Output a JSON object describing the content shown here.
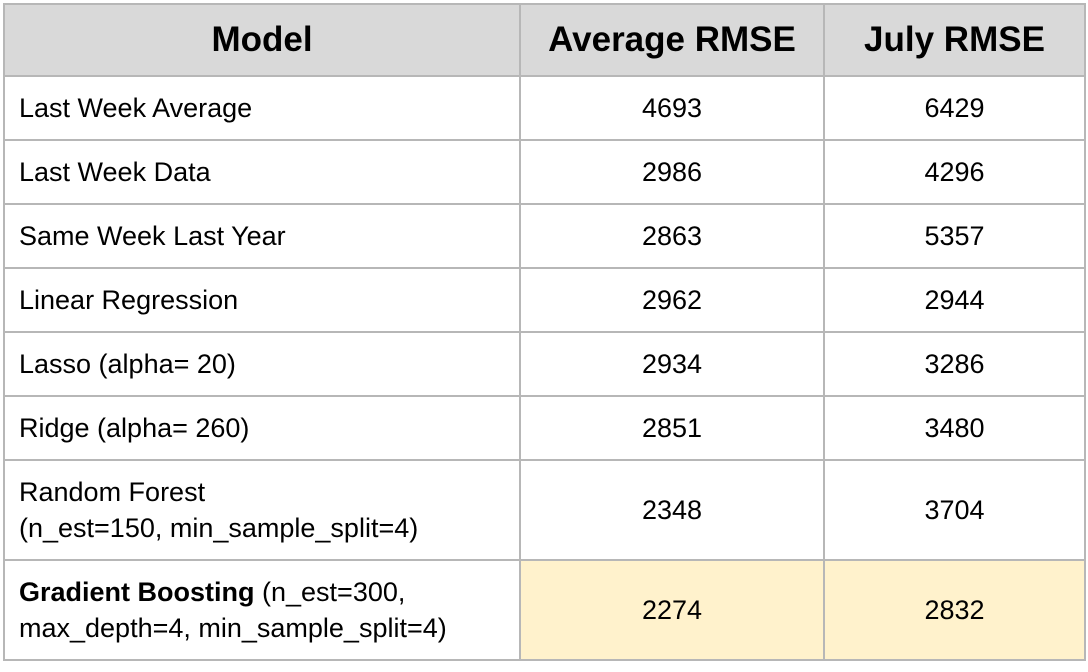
{
  "chart_data": {
    "type": "table",
    "columns": [
      "Model",
      "Average RMSE",
      "July RMSE"
    ],
    "rows": [
      {
        "model": "Last Week Average",
        "model_params": "",
        "average_rmse": "4693",
        "july_rmse": "6429",
        "highlight": false
      },
      {
        "model": "Last Week Data",
        "model_params": "",
        "average_rmse": "2986",
        "july_rmse": "4296",
        "highlight": false
      },
      {
        "model": "Same Week Last Year",
        "model_params": "",
        "average_rmse": "2863",
        "july_rmse": "5357",
        "highlight": false
      },
      {
        "model": "Linear Regression",
        "model_params": "",
        "average_rmse": "2962",
        "july_rmse": "2944",
        "highlight": false
      },
      {
        "model": "Lasso (alpha= 20)",
        "model_params": "",
        "average_rmse": "2934",
        "july_rmse": "3286",
        "highlight": false
      },
      {
        "model": "Ridge (alpha= 260)",
        "model_params": "",
        "average_rmse": "2851",
        "july_rmse": "3480",
        "highlight": false
      },
      {
        "model": "Random Forest",
        "model_params": "(n_est=150, min_sample_split=4)",
        "average_rmse": "2348",
        "july_rmse": "3704",
        "highlight": false
      },
      {
        "model": "Gradient Boosting",
        "model_params": "(n_est=300, max_depth=4, min_sample_split=4)",
        "average_rmse": "2274",
        "july_rmse": "2832",
        "highlight": true
      }
    ],
    "colors": {
      "header_bg": "#d9d9d9",
      "highlight_bg": "#fff2cc",
      "border": "#b7b7b7"
    }
  }
}
